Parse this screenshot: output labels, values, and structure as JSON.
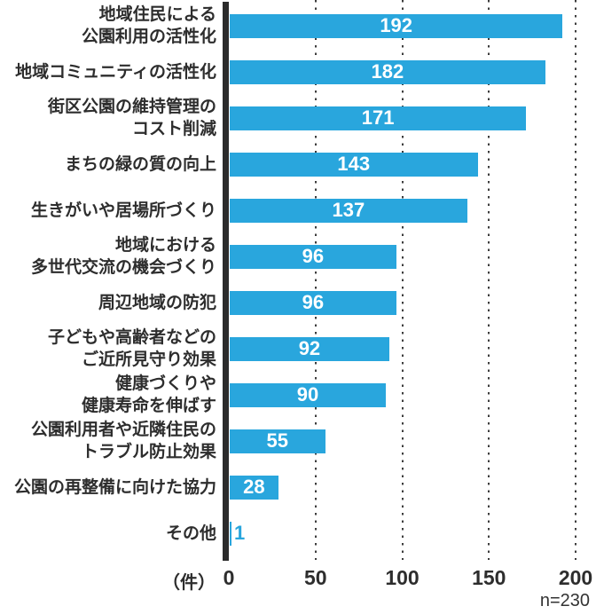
{
  "chart_data": {
    "type": "bar",
    "orientation": "horizontal",
    "categories": [
      "地域住民による\n公園利用の活性化",
      "地域コミュニティの活性化",
      "街区公園の維持管理の\nコスト削減",
      "まちの緑の質の向上",
      "生きがいや居場所づくり",
      "地域における\n多世代交流の機会づくり",
      "周辺地域の防犯",
      "子どもや高齢者などの\nご近所見守り効果",
      "健康づくりや\n健康寿命を伸ばす",
      "公園利用者や近隣住民の\nトラブル防止効果",
      "公園の再整備に向けた協力",
      "その他"
    ],
    "values": [
      192,
      182,
      171,
      143,
      137,
      96,
      96,
      92,
      90,
      55,
      28,
      1
    ],
    "x_ticks": [
      0,
      50,
      100,
      150,
      200
    ],
    "xlim": [
      0,
      200
    ],
    "axis_unit_label": "（件）",
    "footnote": "n=230",
    "grid": "dotted-vertical",
    "legend": "none",
    "colors": {
      "bar": "#29A6DD",
      "value_label": "#ffffff",
      "text": "#2d2d2d",
      "axis": "#2b2b2b",
      "grid": "#3c3c3c",
      "footnote_text": "#333333"
    }
  }
}
